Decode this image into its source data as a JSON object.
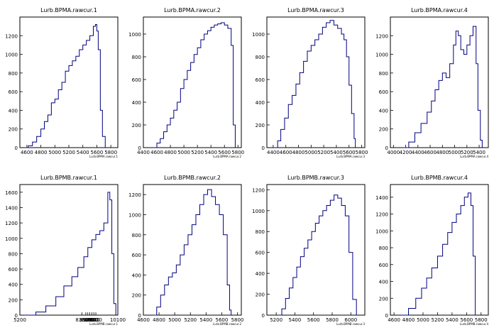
{
  "chart_data": [
    {
      "type": "histogram",
      "title": "Lurb.BPMA.rawcur.1",
      "xlabel": "Lurb.BPMA.rawcur.1",
      "xlim": [
        4500,
        5900
      ],
      "ylim": [
        0,
        1400
      ],
      "xticks": [
        4600,
        4800,
        5000,
        5200,
        5400,
        5600,
        5800
      ],
      "yticks": [
        0,
        200,
        400,
        600,
        800,
        1000,
        1200
      ],
      "x": [
        4570,
        4620,
        4680,
        4740,
        4800,
        4850,
        4900,
        4950,
        5000,
        5050,
        5100,
        5150,
        5200,
        5250,
        5300,
        5350,
        5400,
        5450,
        5500,
        5550,
        5580,
        5600,
        5620,
        5650,
        5680,
        5720
      ],
      "values": [
        0,
        20,
        60,
        120,
        200,
        280,
        350,
        480,
        520,
        620,
        700,
        820,
        880,
        930,
        980,
        1050,
        1100,
        1150,
        1200,
        1300,
        1320,
        1250,
        1050,
        400,
        120,
        10
      ],
      "color": "#000080"
    },
    {
      "type": "histogram",
      "title": "Lurb.BPMA.rawcur.2",
      "xlabel": "Lurb.BPMA.rawcur.2",
      "xlim": [
        4400,
        5850
      ],
      "ylim": [
        0,
        1150
      ],
      "xticks": [
        4400,
        4600,
        4800,
        5000,
        5200,
        5400,
        5600,
        5800
      ],
      "yticks": [
        0,
        200,
        400,
        600,
        800,
        1000
      ],
      "x": [
        4550,
        4600,
        4650,
        4700,
        4750,
        4800,
        4850,
        4900,
        4950,
        5000,
        5050,
        5100,
        5150,
        5200,
        5250,
        5300,
        5350,
        5400,
        5450,
        5500,
        5550,
        5600,
        5650,
        5700,
        5730,
        5760
      ],
      "values": [
        0,
        40,
        80,
        140,
        200,
        260,
        330,
        400,
        520,
        600,
        680,
        750,
        820,
        880,
        950,
        1000,
        1030,
        1060,
        1080,
        1090,
        1100,
        1080,
        1050,
        900,
        200,
        10
      ],
      "color": "#000080"
    },
    {
      "type": "histogram",
      "title": "Lurb.BPMA.rawcur.3",
      "xlabel": "Lurb.BPMA.rawcur.3",
      "xlim": [
        4300,
        5850
      ],
      "ylim": [
        0,
        1150
      ],
      "xticks": [
        4400,
        4600,
        4800,
        5000,
        5200,
        5400,
        5600,
        5800
      ],
      "yticks": [
        0,
        200,
        400,
        600,
        800,
        1000
      ],
      "x": [
        4420,
        4470,
        4520,
        4580,
        4640,
        4700,
        4760,
        4820,
        4880,
        4940,
        5000,
        5060,
        5120,
        5180,
        5240,
        5300,
        5360,
        5420,
        5480,
        5520,
        5560,
        5600,
        5640,
        5680,
        5700
      ],
      "values": [
        0,
        60,
        160,
        260,
        380,
        460,
        560,
        660,
        760,
        850,
        900,
        950,
        1000,
        1060,
        1100,
        1120,
        1080,
        1050,
        1000,
        950,
        800,
        550,
        300,
        80,
        0
      ],
      "color": "#000080"
    },
    {
      "type": "histogram",
      "title": "Lurb.BPMA.rawcur.4",
      "xlabel": "Lurb.BPMA.rawcur.4",
      "xlim": [
        3950,
        5550
      ],
      "ylim": [
        0,
        1400
      ],
      "xticks": [
        4000,
        4200,
        4400,
        4600,
        4800,
        5000,
        5200,
        5400
      ],
      "yticks": [
        0,
        200,
        400,
        600,
        800,
        1000,
        1200
      ],
      "x": [
        4150,
        4250,
        4350,
        4450,
        4550,
        4620,
        4680,
        4740,
        4800,
        4860,
        4920,
        4980,
        5020,
        5060,
        5100,
        5150,
        5200,
        5250,
        5300,
        5350,
        5380,
        5420,
        5450
      ],
      "values": [
        0,
        60,
        160,
        260,
        380,
        500,
        620,
        720,
        800,
        750,
        900,
        1100,
        1250,
        1200,
        1050,
        1000,
        1100,
        1200,
        1300,
        900,
        400,
        80,
        0
      ],
      "color": "#000080"
    },
    {
      "type": "histogram",
      "title": "Lurb.BPMB.rawcur.1",
      "xlabel": "Lurb.BPMB.rawcur.1",
      "xlim": [
        5200,
        10100
      ],
      "ylim": [
        0,
        1700
      ],
      "xticks": [
        5200,
        8300,
        8500,
        8600,
        8700,
        8800,
        8900,
        9000,
        10100
      ],
      "yticks": [
        0,
        200,
        400,
        600,
        800,
        1000,
        1200,
        1400,
        1600
      ],
      "x": [
        5400,
        6000,
        6500,
        7000,
        7400,
        7800,
        8100,
        8400,
        8600,
        8800,
        9000,
        9200,
        9400,
        9600,
        9700,
        9800,
        9900,
        10000
      ],
      "values": [
        0,
        40,
        120,
        240,
        380,
        500,
        620,
        760,
        880,
        980,
        1050,
        1100,
        1200,
        1600,
        1500,
        800,
        150,
        0
      ],
      "color": "#000080"
    },
    {
      "type": "histogram",
      "title": "Lurb.BPMB.rawcur.2",
      "xlabel": "Lurb.BPMB.rawcur.2",
      "xlim": [
        4600,
        5850
      ],
      "ylim": [
        0,
        1300
      ],
      "xticks": [
        4600,
        4800,
        5000,
        5200,
        5400,
        5600,
        5800
      ],
      "yticks": [
        0,
        200,
        400,
        600,
        800,
        1000,
        1200
      ],
      "x": [
        4720,
        4770,
        4820,
        4870,
        4920,
        4970,
        5020,
        5070,
        5120,
        5170,
        5220,
        5270,
        5320,
        5370,
        5420,
        5470,
        5520,
        5570,
        5620,
        5670,
        5700,
        5720
      ],
      "values": [
        0,
        80,
        200,
        300,
        380,
        420,
        500,
        600,
        700,
        800,
        900,
        1000,
        1100,
        1200,
        1250,
        1180,
        1100,
        1000,
        800,
        300,
        50,
        0
      ],
      "color": "#000080"
    },
    {
      "type": "histogram",
      "title": "Lurb.BPMB.rawcur.3",
      "xlabel": "Lurb.BPMB.rawcur.3",
      "xlim": [
        5100,
        6150
      ],
      "ylim": [
        0,
        1250
      ],
      "xticks": [
        5200,
        5400,
        5600,
        5800,
        6000
      ],
      "yticks": [
        0,
        200,
        400,
        600,
        800,
        1000,
        1200
      ],
      "x": [
        5220,
        5260,
        5300,
        5340,
        5380,
        5420,
        5460,
        5500,
        5540,
        5580,
        5620,
        5660,
        5700,
        5740,
        5780,
        5820,
        5860,
        5900,
        5940,
        5980,
        6020,
        6060
      ],
      "values": [
        0,
        60,
        160,
        260,
        360,
        460,
        560,
        640,
        720,
        800,
        880,
        950,
        1000,
        1050,
        1100,
        1150,
        1120,
        1050,
        950,
        600,
        150,
        0
      ],
      "color": "#000080"
    },
    {
      "type": "histogram",
      "title": "Lurb.BPMB.rawcur.4",
      "xlabel": "Lurb.BPMB.rawcur.4",
      "xlim": [
        4550,
        5900
      ],
      "ylim": [
        0,
        1550
      ],
      "xticks": [
        4600,
        4800,
        5000,
        5200,
        5400,
        5600,
        5800
      ],
      "yticks": [
        0,
        200,
        400,
        600,
        800,
        1000,
        1200,
        1400
      ],
      "x": [
        4700,
        4800,
        4900,
        4980,
        5050,
        5120,
        5200,
        5270,
        5340,
        5400,
        5460,
        5520,
        5570,
        5620,
        5660,
        5690,
        5720
      ],
      "values": [
        0,
        80,
        200,
        320,
        440,
        560,
        700,
        840,
        980,
        1100,
        1200,
        1300,
        1400,
        1450,
        1300,
        700,
        50
      ],
      "color": "#000080"
    }
  ]
}
